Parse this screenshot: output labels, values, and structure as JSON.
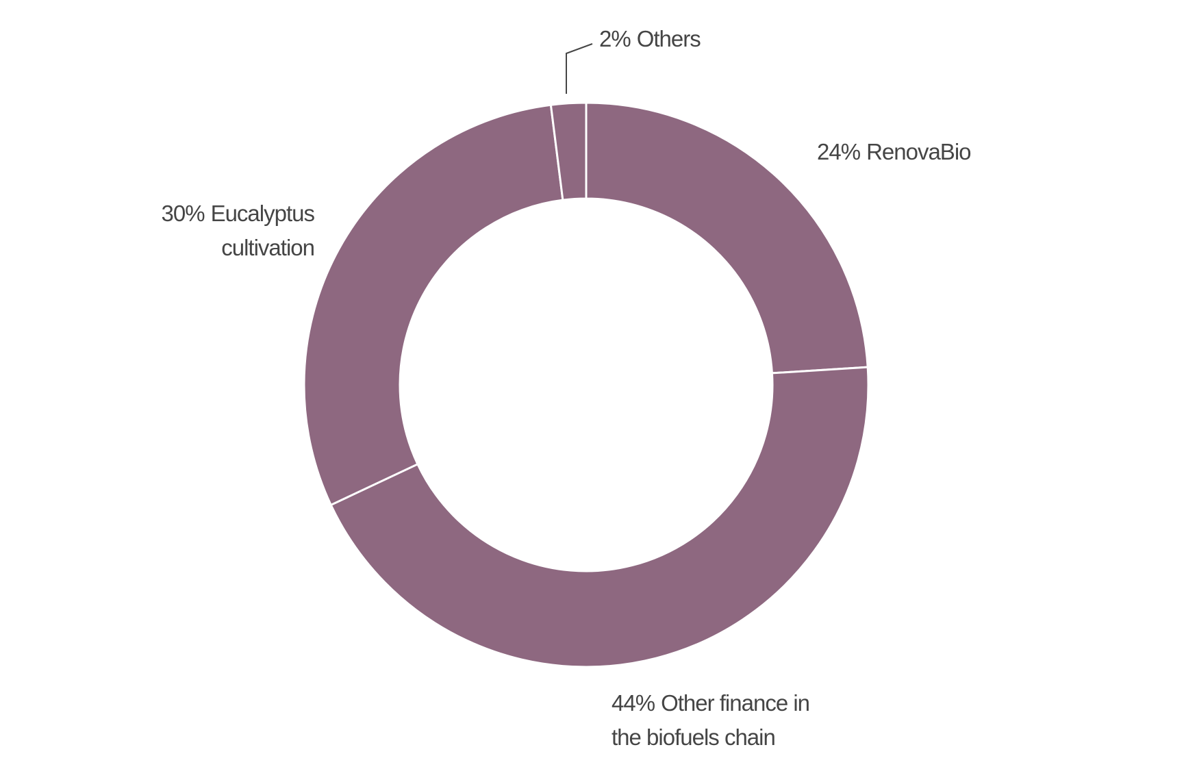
{
  "chart_data": {
    "type": "donut",
    "categories": [
      "RenovaBio",
      "Other finance in the biofuels chain",
      "Eucalyptus cultivation",
      "Others"
    ],
    "values": [
      24,
      44,
      30,
      2
    ],
    "value_labels": [
      "24%",
      "44%",
      "30%",
      "2%"
    ],
    "color": "#8e6880"
  }
}
